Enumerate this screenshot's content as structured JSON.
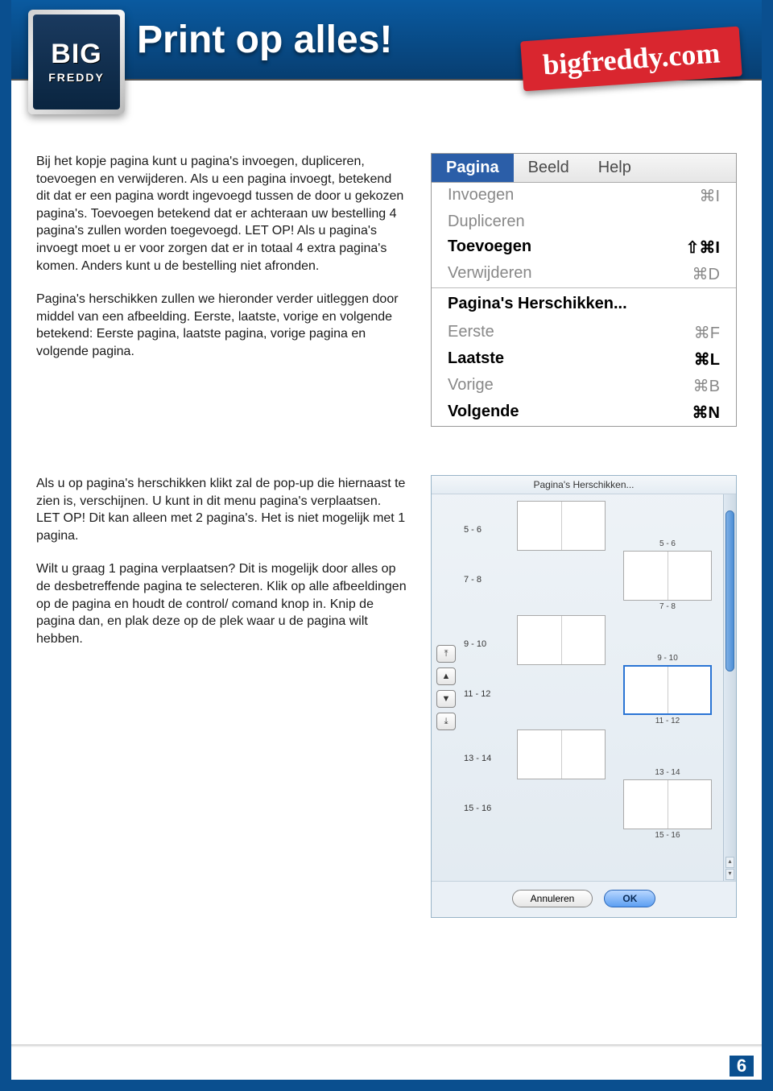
{
  "colors": {
    "brand_blue": "#0a4f8f",
    "topbar_gradient_top": "#0a5aa0",
    "topbar_gradient_bottom": "#073e71",
    "red_tag": "#d9262f",
    "menu_active_bg": "#2b5ea8",
    "text": "#1a1a1a",
    "popup_border": "#98b4c8",
    "scroll_thumb": "#4d8fd5",
    "ok_button": "#5c9ff2"
  },
  "logo": {
    "line1": "BIG",
    "line2": "FREDDY"
  },
  "headline": "Print op alles!",
  "red_tag": "bigfreddy.com",
  "paragraphs": {
    "p1": "Bij het kopje pagina kunt u pagina's invoegen, dupliceren, toevoegen en verwijderen. Als u een pagina invoegt, betekend dit dat er een pagina wordt ingevoegd tussen de door u gekozen pagina's. Toevoegen betekend dat er achteraan uw bestelling 4 pagina's zullen worden toegevoegd. LET OP! Als u pagina's invoegt moet u er voor zorgen dat er in totaal 4 extra pagina's komen. Anders kunt u de bestelling niet afronden.",
    "p2": "Pagina's herschikken zullen we hieronder verder uitleggen door middel van een afbeelding. Eerste, laatste, vorige en volgende betekend: Eerste pagina, laatste pagina, vorige pagina en volgende pagina.",
    "p3": "Als u op pagina's herschikken klikt zal de pop-up die hiernaast te zien is, verschijnen. U kunt in dit menu pagina's verplaatsen. LET OP! Dit kan alleen met 2 pagina's. Het is niet mogelijk met 1 pagina.",
    "p4": "Wilt u graag 1 pagina verplaatsen? Dit is mogelijk door alles op de desbetreffende pagina te selecteren. Klik op alle afbeeldingen op de pagina en houdt de control/ comand knop in. Knip de pagina dan, en plak deze op de plek waar u de pagina wilt hebben."
  },
  "menu": {
    "menubar": [
      "Pagina",
      "Beeld",
      "Help"
    ],
    "active_index": 0,
    "group1": [
      {
        "label": "Invoegen",
        "shortcut": "⌘I",
        "enabled": false
      },
      {
        "label": "Dupliceren",
        "shortcut": "",
        "enabled": false
      },
      {
        "label": "Toevoegen",
        "shortcut": "⇧⌘I",
        "enabled": true,
        "bold": true
      },
      {
        "label": "Verwijderen",
        "shortcut": "⌘D",
        "enabled": false
      }
    ],
    "section": "Pagina's Herschikken...",
    "group2": [
      {
        "label": "Eerste",
        "shortcut": "⌘F",
        "enabled": false
      },
      {
        "label": "Laatste",
        "shortcut": "⌘L",
        "enabled": true,
        "bold": true
      },
      {
        "label": "Vorige",
        "shortcut": "⌘B",
        "enabled": false
      },
      {
        "label": "Volgende",
        "shortcut": "⌘N",
        "enabled": true,
        "bold": true
      }
    ]
  },
  "popup": {
    "title": "Pagina's Herschikken...",
    "spreads": [
      {
        "label": "5 - 6",
        "caption": "5 - 6"
      },
      {
        "label": "7 - 8",
        "caption": "7 - 8"
      },
      {
        "label": "9 - 10",
        "caption": "9 - 10"
      },
      {
        "label": "11 - 12",
        "caption": "11 - 12",
        "selected": true
      },
      {
        "label": "13 - 14",
        "caption": "13 - 14"
      },
      {
        "label": "15 - 16",
        "caption": "15 - 16"
      }
    ],
    "arrow_glyphs": [
      "⤒",
      "▲",
      "▼",
      "⤓"
    ],
    "buttons": {
      "cancel": "Annuleren",
      "ok": "OK"
    }
  },
  "page_number": "6"
}
